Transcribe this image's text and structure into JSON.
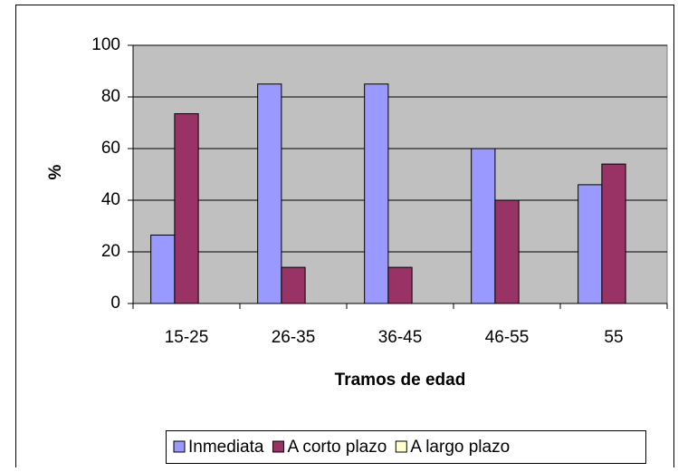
{
  "chart_data": {
    "type": "bar",
    "x_label": "Tramos de edad",
    "y_label": "%",
    "categories": [
      "15-25",
      "26-35",
      "36-45",
      "46-55",
      "55"
    ],
    "series": [
      {
        "name": "Inmediata",
        "color": "#9999ff",
        "values": [
          26.5,
          85,
          85,
          60,
          46
        ]
      },
      {
        "name": "A corto plazo",
        "color": "#993366",
        "values": [
          73.5,
          14,
          14,
          40,
          54
        ]
      },
      {
        "name": "A largo plazo",
        "color": "#ffffcc",
        "values": [
          0,
          0,
          0,
          0,
          0
        ]
      }
    ],
    "ylim": [
      0,
      100
    ],
    "yticks": [
      0,
      20,
      40,
      60,
      80,
      100
    ],
    "grid": true,
    "legend": "bottom"
  }
}
